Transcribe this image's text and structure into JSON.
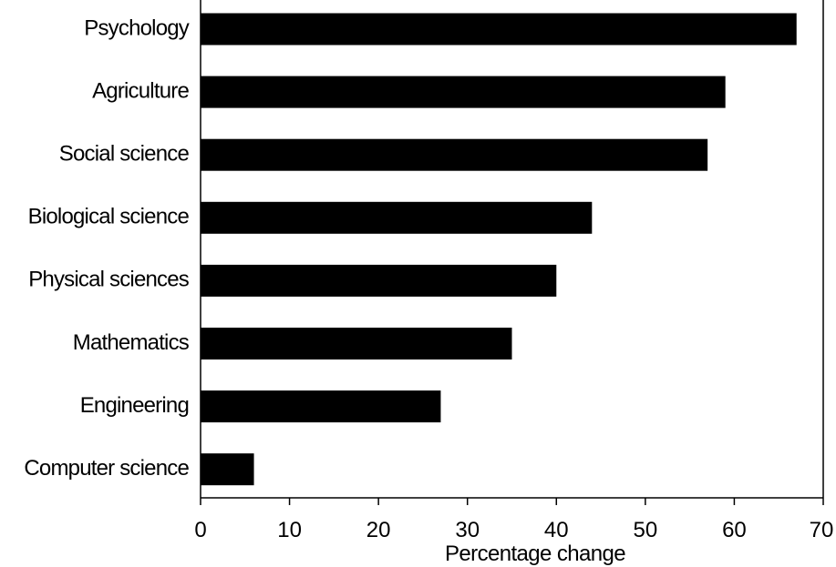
{
  "chart_data": {
    "type": "bar",
    "orientation": "horizontal",
    "categories": [
      "Psychology",
      "Agriculture",
      "Social science",
      "Biological science",
      "Physical sciences",
      "Mathematics",
      "Engineering",
      "Computer science"
    ],
    "values": [
      67,
      59,
      57,
      44,
      40,
      35,
      27,
      6
    ],
    "xlabel": "Percentage change",
    "ylabel": "",
    "xlim": [
      0,
      70
    ],
    "xticks": [
      "0",
      "10",
      "20",
      "30",
      "40",
      "50",
      "60",
      "70"
    ],
    "grid": false,
    "bar_color": "#000000"
  }
}
